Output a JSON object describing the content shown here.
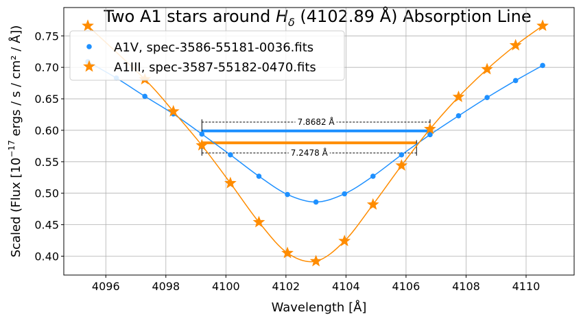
{
  "chart_data": {
    "type": "line",
    "title_prefix": "Two A1 stars around ",
    "title_symbol": "H",
    "title_subscript": "δ",
    "title_suffix": " (4102.89 Å) Absorption Line",
    "xlabel": "Wavelength [Å]",
    "ylabel_prefix": "Scaled (Flux [10",
    "ylabel_exponent": "−17",
    "ylabel_suffix": " ergs / s / cm² / Å])",
    "xlim": [
      4094.6,
      4111.6
    ],
    "ylim": [
      0.37,
      0.795
    ],
    "xticks": [
      4096,
      4098,
      4100,
      4102,
      4104,
      4106,
      4108,
      4110
    ],
    "yticks": [
      0.4,
      0.45,
      0.5,
      0.55,
      0.6,
      0.65,
      0.7,
      0.75
    ],
    "grid": true,
    "legend_position": "top-left",
    "series": [
      {
        "name": "A1V, spec-3586-55181-0036.fits",
        "color": "#1e90ff",
        "marker": "circle",
        "x": [
          4095.4,
          4096.35,
          4097.3,
          4098.25,
          4099.2,
          4100.15,
          4101.1,
          4102.05,
          4103.0,
          4103.95,
          4104.9,
          4105.85,
          4106.8,
          4107.75,
          4108.7,
          4109.65,
          4110.55
        ],
        "y": [
          0.709,
          0.683,
          0.654,
          0.626,
          0.594,
          0.561,
          0.527,
          0.498,
          0.486,
          0.499,
          0.527,
          0.561,
          0.593,
          0.623,
          0.652,
          0.679,
          0.703
        ]
      },
      {
        "name": "A1III, spec-3587-55182-0470.fits",
        "color": "#ff8c00",
        "marker": "star",
        "x": [
          4095.4,
          4097.3,
          4098.25,
          4099.2,
          4100.15,
          4101.1,
          4102.05,
          4103.0,
          4103.95,
          4104.9,
          4105.85,
          4106.8,
          4107.75,
          4108.7,
          4109.65,
          4110.55
        ],
        "y": [
          0.766,
          0.681,
          0.63,
          0.576,
          0.516,
          0.454,
          0.405,
          0.392,
          0.424,
          0.482,
          0.544,
          0.602,
          0.653,
          0.697,
          0.735,
          0.766
        ]
      }
    ],
    "width_markers": [
      {
        "color": "#1e90ff",
        "level": 0.599,
        "x_start": 4099.2,
        "x_end": 4106.8,
        "dim_y": 0.613,
        "label": "7.8682 Å"
      },
      {
        "color": "#ff8c00",
        "level": 0.58,
        "x_start": 4099.2,
        "x_end": 4106.35,
        "dim_y": 0.564,
        "label": "7.2478 Å"
      }
    ]
  }
}
